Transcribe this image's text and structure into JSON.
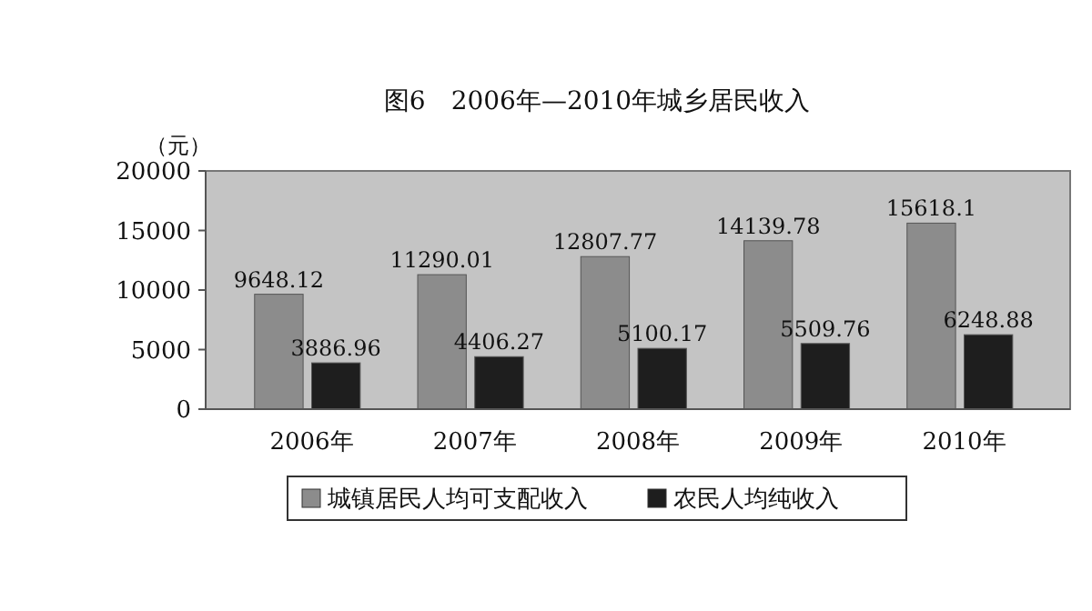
{
  "chart_data": {
    "type": "bar",
    "title": "图6　2006年—2010年城乡居民收入",
    "ylabel": "（元）",
    "categories": [
      "2006年",
      "2007年",
      "2008年",
      "2009年",
      "2010年"
    ],
    "series": [
      {
        "name": "城镇居民人均可支配收入",
        "color": "#8c8c8c",
        "values": [
          9648.12,
          11290.01,
          12807.77,
          14139.78,
          15618.1
        ]
      },
      {
        "name": "农民人均纯收入",
        "color": "#1e1e1e",
        "values": [
          3886.96,
          4406.27,
          5100.17,
          5509.76,
          6248.88
        ]
      }
    ],
    "value_labels": [
      [
        "9648.12",
        "11290.01",
        "12807.77",
        "14139.78",
        "15618.1"
      ],
      [
        "3886.96",
        "4406.27",
        "5100.17",
        "5509.76",
        "6248.88"
      ]
    ],
    "ylim": [
      0,
      20000
    ],
    "yticks": [
      0,
      5000,
      10000,
      15000,
      20000
    ],
    "grid": false,
    "legend": "bottom"
  }
}
